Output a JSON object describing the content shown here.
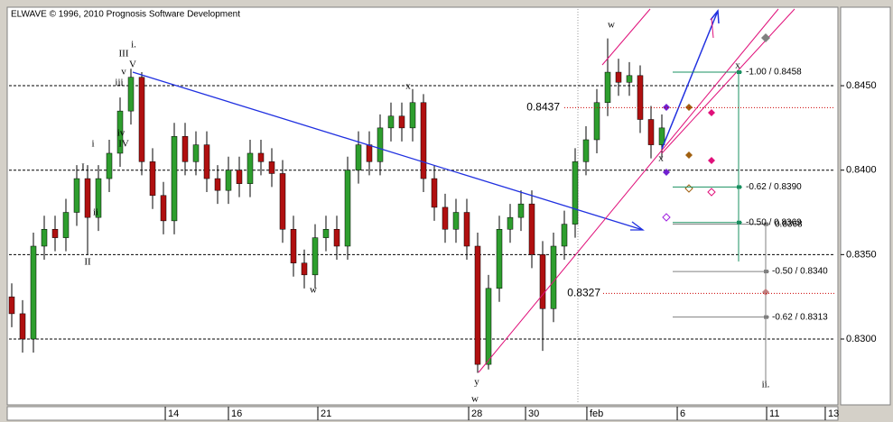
{
  "chart_data": {
    "type": "candlestick",
    "title": "ELWAVE © 1996, 2010 Prognosis Software Development",
    "up_color": "#2e9e2e",
    "down_color": "#b01010",
    "grid": true,
    "ylim": [
      0.82621,
      0.84954
    ],
    "yticks": [
      {
        "value": 0.83,
        "label": "0.8300"
      },
      {
        "value": 0.835,
        "label": "0.8350"
      },
      {
        "value": 0.84,
        "label": "0.8400"
      },
      {
        "value": 0.845,
        "label": "0.8450"
      }
    ],
    "xlim": [
      -0.25,
      76
    ],
    "xticks": [
      {
        "value": 14.17,
        "label": "14"
      },
      {
        "value": 20,
        "label": "16"
      },
      {
        "value": 28.25,
        "label": "21"
      },
      {
        "value": 42.17,
        "label": "28"
      },
      {
        "value": 47.42,
        "label": "30"
      },
      {
        "value": 53.08,
        "label": "feb"
      },
      {
        "value": 61.42,
        "label": "6"
      },
      {
        "value": 69.67,
        "label": "11"
      },
      {
        "value": 75.08,
        "label": "13"
      }
    ],
    "open": [
      0.8325,
      0.8315,
      0.83,
      0.8355,
      0.8365,
      0.836,
      0.8375,
      0.8395,
      0.8372,
      0.8395,
      0.841,
      0.8435,
      0.8455,
      0.8405,
      0.8385,
      0.837,
      0.842,
      0.8405,
      0.8415,
      0.8395,
      0.8388,
      0.84,
      0.8392,
      0.841,
      0.8405,
      0.8398,
      0.8365,
      0.8345,
      0.8338,
      0.836,
      0.8365,
      0.8355,
      0.84,
      0.8415,
      0.8405,
      0.8425,
      0.8432,
      0.8425,
      0.844,
      0.8395,
      0.8378,
      0.8365,
      0.8375,
      0.8355,
      0.8285,
      0.833,
      0.8365,
      0.8372,
      0.838,
      0.835,
      0.8318,
      0.8355,
      0.8368,
      0.8405,
      0.8418,
      0.844,
      0.8458,
      0.8452,
      0.8456,
      0.843,
      0.8415
    ],
    "high": [
      0.8333,
      0.8323,
      0.8363,
      0.8373,
      0.8373,
      0.8383,
      0.8403,
      0.8403,
      0.8403,
      0.8418,
      0.8443,
      0.846,
      0.8458,
      0.8413,
      0.8393,
      0.8428,
      0.8428,
      0.8423,
      0.8423,
      0.8403,
      0.8408,
      0.8408,
      0.8418,
      0.8418,
      0.8413,
      0.8406,
      0.8373,
      0.8353,
      0.8368,
      0.8373,
      0.8373,
      0.8408,
      0.8423,
      0.8423,
      0.8433,
      0.844,
      0.844,
      0.8448,
      0.8445,
      0.8403,
      0.8386,
      0.8383,
      0.8383,
      0.8363,
      0.8338,
      0.8373,
      0.838,
      0.8388,
      0.8388,
      0.8358,
      0.8363,
      0.8376,
      0.8413,
      0.8426,
      0.8448,
      0.8478,
      0.8466,
      0.8464,
      0.8462,
      0.8438,
      0.8433
    ],
    "low": [
      0.8307,
      0.8292,
      0.8292,
      0.8347,
      0.8352,
      0.8352,
      0.8367,
      0.835,
      0.8364,
      0.8387,
      0.8402,
      0.8427,
      0.8397,
      0.8377,
      0.8362,
      0.8362,
      0.8397,
      0.8397,
      0.8387,
      0.838,
      0.838,
      0.8384,
      0.8384,
      0.8397,
      0.839,
      0.8357,
      0.8337,
      0.833,
      0.833,
      0.8352,
      0.8347,
      0.8347,
      0.8392,
      0.8397,
      0.8397,
      0.8417,
      0.8417,
      0.8417,
      0.8387,
      0.837,
      0.8357,
      0.8357,
      0.8347,
      0.828,
      0.8282,
      0.8322,
      0.8357,
      0.8364,
      0.8342,
      0.8293,
      0.831,
      0.8347,
      0.836,
      0.8397,
      0.841,
      0.8432,
      0.8444,
      0.8444,
      0.8422,
      0.8407,
      0.8407
    ],
    "close": [
      0.8315,
      0.83,
      0.8355,
      0.8365,
      0.836,
      0.8375,
      0.8395,
      0.8372,
      0.8395,
      0.841,
      0.8435,
      0.8455,
      0.8405,
      0.8385,
      0.837,
      0.842,
      0.8405,
      0.8415,
      0.8395,
      0.8388,
      0.84,
      0.8392,
      0.841,
      0.8405,
      0.8398,
      0.8365,
      0.8345,
      0.8338,
      0.836,
      0.8365,
      0.8355,
      0.84,
      0.8415,
      0.8405,
      0.8425,
      0.8432,
      0.8425,
      0.844,
      0.8395,
      0.8378,
      0.8365,
      0.8375,
      0.8355,
      0.8285,
      0.833,
      0.8365,
      0.8372,
      0.838,
      0.835,
      0.8318,
      0.8355,
      0.8368,
      0.8405,
      0.8418,
      0.844,
      0.8458,
      0.8452,
      0.8456,
      0.843,
      0.8415,
      0.8425
    ],
    "price_lines": [
      {
        "value": 0.8437,
        "label": "0.8437",
        "color": "#cc0000"
      },
      {
        "value": 0.8327,
        "label": "0.8327",
        "color": "#cc0000"
      }
    ],
    "targets": [
      {
        "value": 0.8458,
        "label": "-1.00 / 0.8458",
        "color": "#1a9060"
      },
      {
        "value": 0.839,
        "label": "-0.62 / 0.8390",
        "color": "#1a9060"
      },
      {
        "value": 0.8368,
        "label": "0.8368",
        "color": "#808080"
      },
      {
        "value": 0.8369,
        "label": "-0.50 / 0.8369",
        "color": "#1a9060"
      },
      {
        "value": 0.834,
        "label": "-0.50 / 0.8340",
        "color": "#808080"
      },
      {
        "value": 0.8313,
        "label": "-0.62 / 0.8313",
        "color": "#808080"
      }
    ],
    "wave_labels": [
      "i.",
      "III",
      "V",
      "v",
      "iii",
      "iv",
      "IV",
      "i",
      "I",
      "ii",
      "II",
      "w",
      "x",
      "y",
      "w",
      "w",
      "x",
      "x",
      "ii."
    ]
  }
}
